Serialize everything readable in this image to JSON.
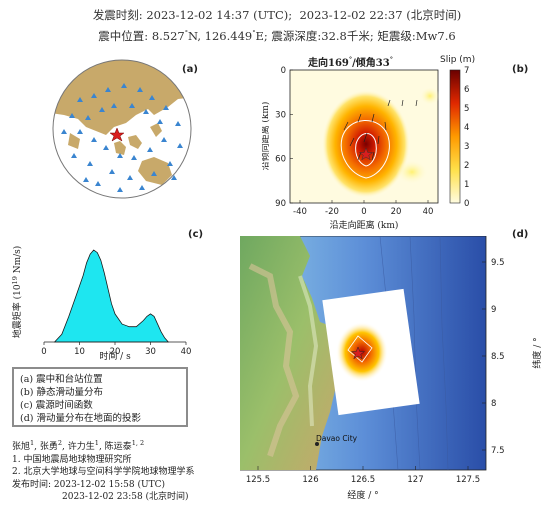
{
  "header": {
    "origin_time_label": "发震时刻:",
    "origin_time_utc": "2023-12-02 14:37",
    "utc_tag": "(UTC)",
    "sep": ";",
    "origin_time_bj": "2023-12-02 22:37",
    "bj_tag": "(北京时间)",
    "epicenter_label": "震中位置:",
    "lat": "8.527",
    "lat_hemi": "N,",
    "lon": "126.449",
    "lon_hemi": "E;",
    "depth_label": "震源深度:",
    "depth": "32.8千米;",
    "mag_label": "矩震级:",
    "magnitude": "Mw7.6"
  },
  "panel_a": {
    "tag": "(a)"
  },
  "panel_b": {
    "tag": "(b)",
    "title_strike_label": "走向",
    "strike": "169",
    "title_sep": "/倾角",
    "dip": "33",
    "colorbar_label": "Slip (m)",
    "colorbar_ticks": [
      "0",
      "1",
      "2",
      "3",
      "4",
      "5",
      "6",
      "7"
    ],
    "xlabel": "沿走向距离 (km)",
    "ylabel": "沿倾向距离 (km)",
    "xticks": [
      "-40",
      "-20",
      "0",
      "20",
      "40"
    ],
    "yticks": [
      "0",
      "30",
      "60",
      "90"
    ]
  },
  "panel_c": {
    "tag": "(c)",
    "xlabel": "时间 / s",
    "ylabel_prefix": "地震矩率 (10",
    "ylabel_exp": "19",
    "ylabel_suffix": " Nm/s)",
    "xticks": [
      "0",
      "10",
      "20",
      "30",
      "40"
    ]
  },
  "panel_d": {
    "tag": "(d)",
    "xlabel": "经度 / °",
    "ylabel": "纬度 / °",
    "xticks": [
      "125.5",
      "126",
      "126.5",
      "127",
      "127.5"
    ],
    "yticks": [
      "9.5",
      "9",
      "8.5",
      "8",
      "7.5"
    ],
    "city": "Davao City"
  },
  "chart_data": {
    "type": "area",
    "title": "",
    "xlabel": "时间 / s",
    "ylabel": "地震矩率 (10^19 Nm/s)",
    "xlim": [
      0,
      40
    ],
    "x": [
      3,
      5,
      7,
      9,
      11,
      12,
      13,
      14,
      15,
      16,
      17,
      18,
      19,
      20,
      22,
      24,
      26,
      28,
      29,
      30,
      31,
      32,
      33,
      34,
      35
    ],
    "values": [
      0.0,
      0.15,
      0.5,
      0.9,
      1.3,
      1.55,
      1.72,
      1.8,
      1.75,
      1.6,
      1.35,
      1.05,
      0.75,
      0.55,
      0.35,
      0.3,
      0.3,
      0.42,
      0.5,
      0.55,
      0.5,
      0.35,
      0.2,
      0.08,
      0.0
    ],
    "colors": {
      "fill": "#1ee6f0",
      "stroke": "#1a1a1a"
    }
  },
  "legend": {
    "items": [
      "(a) 震中和台站位置",
      "(b) 静态滑动量分布",
      "(c) 震源时间函数",
      "(d) 滑动量分布在地面的投影"
    ]
  },
  "authors": {
    "name1": "张旭",
    "sup1": "1",
    "c1": ", ",
    "name2": "张勇",
    "sup2": "2",
    "c2": ", ",
    "name3": "许力生",
    "sup3": "1",
    "c3": ", ",
    "name4": "陈运泰",
    "sup4": "1, 2",
    "aff1": "1. 中国地震局地球物理研究所",
    "aff2": "2. 北京大学地球与空间科学学院地球物理学系",
    "release_label": "发布时间:",
    "release_utc": "2023-12-02  15:58 (UTC)",
    "release_bj": "2023-12-02  23:58 (北京时间)"
  }
}
